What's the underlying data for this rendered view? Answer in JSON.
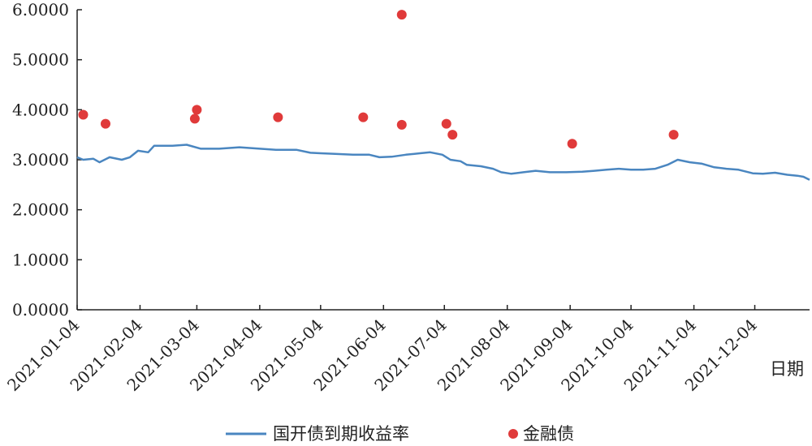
{
  "chart_data": {
    "type": "line",
    "xlabel": "日期",
    "ylabel": "",
    "ylim": [
      0,
      6
    ],
    "y_ticks": [
      "0.0000",
      "1.0000",
      "2.0000",
      "3.0000",
      "4.0000",
      "5.0000",
      "6.0000"
    ],
    "x_ticks": [
      "2021-01-04",
      "2021-02-04",
      "2021-03-04",
      "2021-04-04",
      "2021-05-04",
      "2021-06-04",
      "2021-07-04",
      "2021-08-04",
      "2021-09-04",
      "2021-10-04",
      "2021-11-04",
      "2021-12-04"
    ],
    "xlim": [
      "2021-01-04",
      "2021-12-31"
    ],
    "legend_position": "bottom",
    "colors": {
      "line": "#4a86c0",
      "dots": "#e03a3a",
      "axis": "#222222"
    },
    "series": [
      {
        "name": "国开债到期收益率",
        "type": "line",
        "points": [
          [
            "2021-01-04",
            3.05
          ],
          [
            "2021-01-07",
            3.0
          ],
          [
            "2021-01-12",
            3.02
          ],
          [
            "2021-01-15",
            2.95
          ],
          [
            "2021-01-20",
            3.05
          ],
          [
            "2021-01-26",
            3.0
          ],
          [
            "2021-01-30",
            3.05
          ],
          [
            "2021-02-03",
            3.18
          ],
          [
            "2021-02-08",
            3.15
          ],
          [
            "2021-02-11",
            3.28
          ],
          [
            "2021-02-20",
            3.28
          ],
          [
            "2021-02-27",
            3.3
          ],
          [
            "2021-03-06",
            3.22
          ],
          [
            "2021-03-15",
            3.22
          ],
          [
            "2021-03-25",
            3.25
          ],
          [
            "2021-04-04",
            3.22
          ],
          [
            "2021-04-12",
            3.2
          ],
          [
            "2021-04-22",
            3.2
          ],
          [
            "2021-04-29",
            3.14
          ],
          [
            "2021-05-04",
            3.13
          ],
          [
            "2021-05-10",
            3.12
          ],
          [
            "2021-05-20",
            3.1
          ],
          [
            "2021-05-28",
            3.1
          ],
          [
            "2021-06-02",
            3.05
          ],
          [
            "2021-06-08",
            3.06
          ],
          [
            "2021-06-15",
            3.1
          ],
          [
            "2021-06-22",
            3.13
          ],
          [
            "2021-06-27",
            3.15
          ],
          [
            "2021-07-03",
            3.1
          ],
          [
            "2021-07-07",
            3.0
          ],
          [
            "2021-07-12",
            2.97
          ],
          [
            "2021-07-15",
            2.9
          ],
          [
            "2021-07-22",
            2.87
          ],
          [
            "2021-07-28",
            2.82
          ],
          [
            "2021-08-01",
            2.75
          ],
          [
            "2021-08-06",
            2.72
          ],
          [
            "2021-08-12",
            2.75
          ],
          [
            "2021-08-18",
            2.78
          ],
          [
            "2021-08-25",
            2.75
          ],
          [
            "2021-09-02",
            2.75
          ],
          [
            "2021-09-10",
            2.76
          ],
          [
            "2021-09-16",
            2.78
          ],
          [
            "2021-09-22",
            2.8
          ],
          [
            "2021-09-28",
            2.82
          ],
          [
            "2021-10-04",
            2.8
          ],
          [
            "2021-10-10",
            2.8
          ],
          [
            "2021-10-16",
            2.82
          ],
          [
            "2021-10-22",
            2.9
          ],
          [
            "2021-10-27",
            3.0
          ],
          [
            "2021-11-02",
            2.95
          ],
          [
            "2021-11-08",
            2.92
          ],
          [
            "2021-11-14",
            2.85
          ],
          [
            "2021-11-20",
            2.82
          ],
          [
            "2021-11-26",
            2.8
          ],
          [
            "2021-12-03",
            2.73
          ],
          [
            "2021-12-08",
            2.72
          ],
          [
            "2021-12-14",
            2.74
          ],
          [
            "2021-12-20",
            2.7
          ],
          [
            "2021-12-25",
            2.68
          ],
          [
            "2021-12-28",
            2.66
          ],
          [
            "2021-12-31",
            2.6
          ]
        ]
      },
      {
        "name": "金融债",
        "type": "scatter",
        "points": [
          [
            "2021-01-07",
            3.9
          ],
          [
            "2021-01-18",
            3.72
          ],
          [
            "2021-03-03",
            3.82
          ],
          [
            "2021-03-04",
            4.0
          ],
          [
            "2021-04-13",
            3.85
          ],
          [
            "2021-05-25",
            3.85
          ],
          [
            "2021-06-13",
            5.9
          ],
          [
            "2021-06-13",
            3.7
          ],
          [
            "2021-07-05",
            3.72
          ],
          [
            "2021-07-08",
            3.5
          ],
          [
            "2021-09-05",
            3.32
          ],
          [
            "2021-10-25",
            3.5
          ]
        ]
      }
    ]
  }
}
